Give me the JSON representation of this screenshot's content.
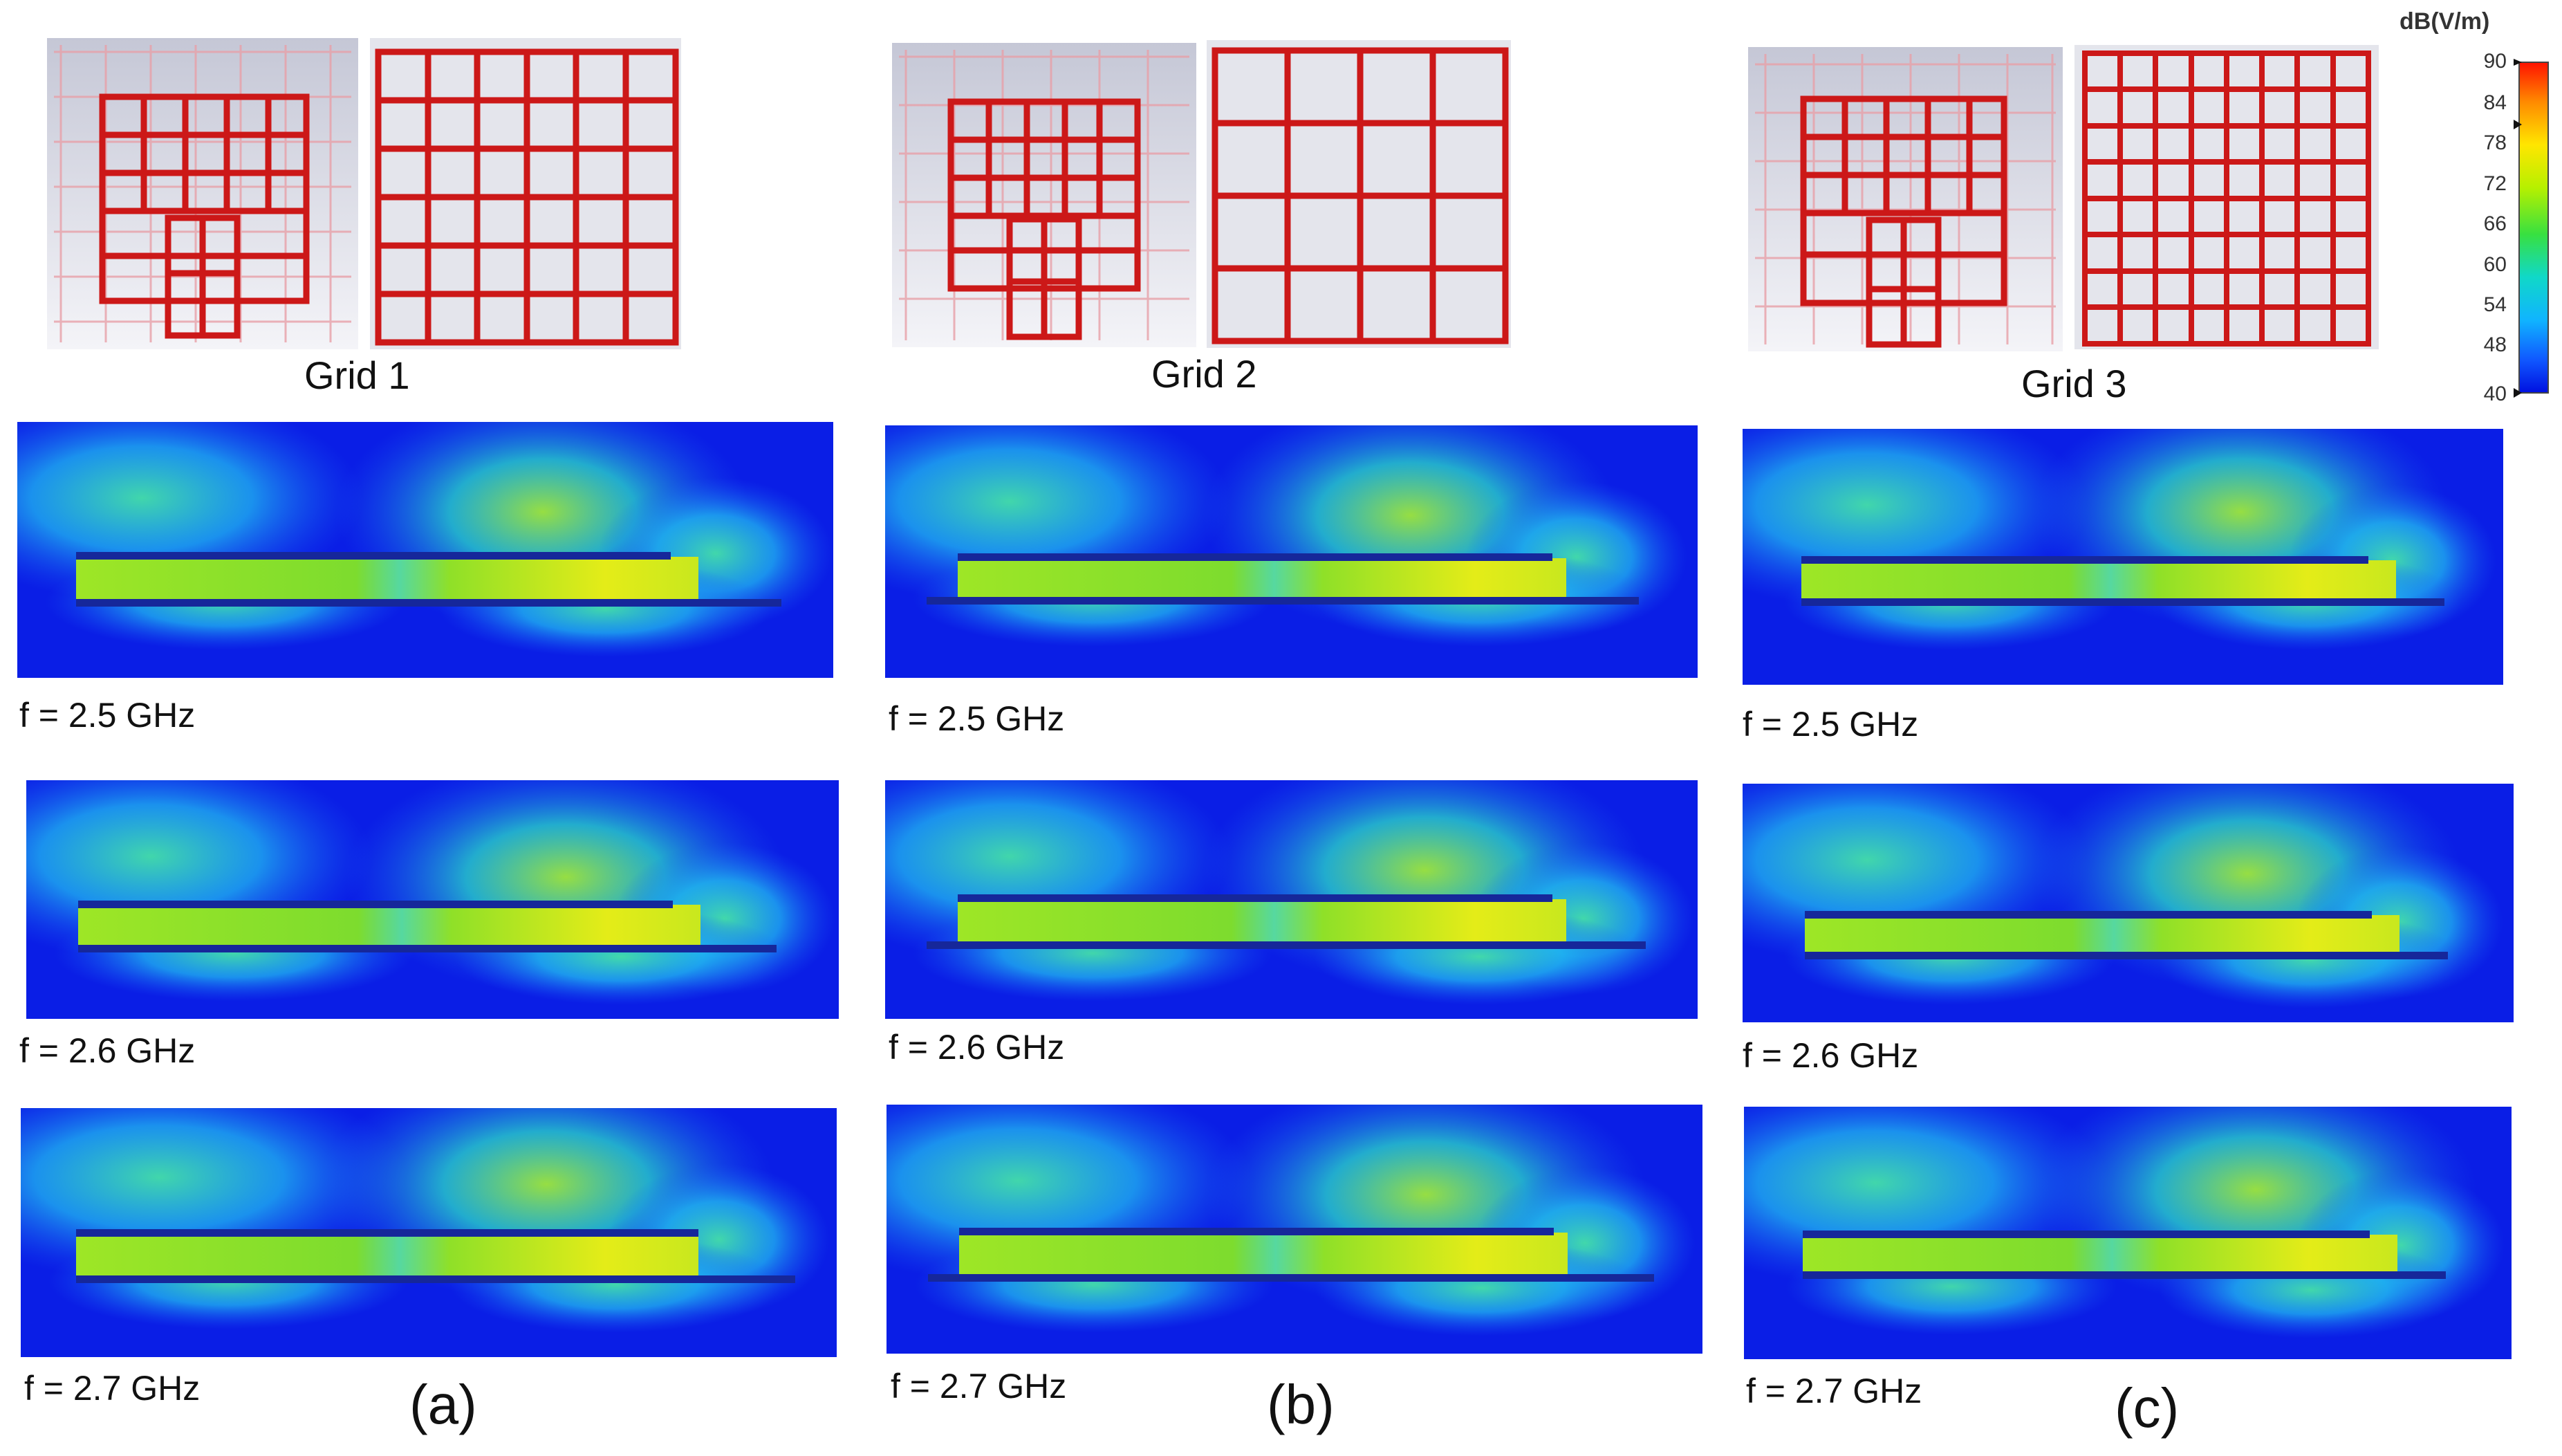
{
  "colorbar": {
    "title": "dB(V/m)",
    "ticks": [
      "90",
      "84",
      "78",
      "72",
      "66",
      "60",
      "54",
      "48",
      "40"
    ],
    "colors": [
      "#ff1a00",
      "#ff8800",
      "#ffe000",
      "#b8f000",
      "#3ee03a",
      "#10d8c0",
      "#10b8ff",
      "#1060ff",
      "#0010e0"
    ]
  },
  "columns": [
    {
      "grid_label": "Grid 1",
      "column_label": "(a)",
      "rows": [
        {
          "freq": "f = 2.5 GHz"
        },
        {
          "freq": "f = 2.6 GHz"
        },
        {
          "freq": "f = 2.7 GHz"
        }
      ]
    },
    {
      "grid_label": "Grid 2",
      "column_label": "(b)",
      "rows": [
        {
          "freq": "f = 2.5 GHz"
        },
        {
          "freq": "f = 2.6 GHz"
        },
        {
          "freq": "f = 2.7 GHz"
        }
      ]
    },
    {
      "grid_label": "Grid 3",
      "column_label": "(c)",
      "rows": [
        {
          "freq": "f = 2.5 GHz"
        },
        {
          "freq": "f = 2.6 GHz"
        },
        {
          "freq": "f = 2.7 GHz"
        }
      ]
    }
  ],
  "grid_divisions": [
    6,
    4,
    8
  ],
  "field_colors": {
    "background": "#0a1ee6",
    "halo": "#24c8f0",
    "strip": "#9fe022",
    "strip_hot": "#e6ee1a",
    "conductor": "#16279a"
  }
}
